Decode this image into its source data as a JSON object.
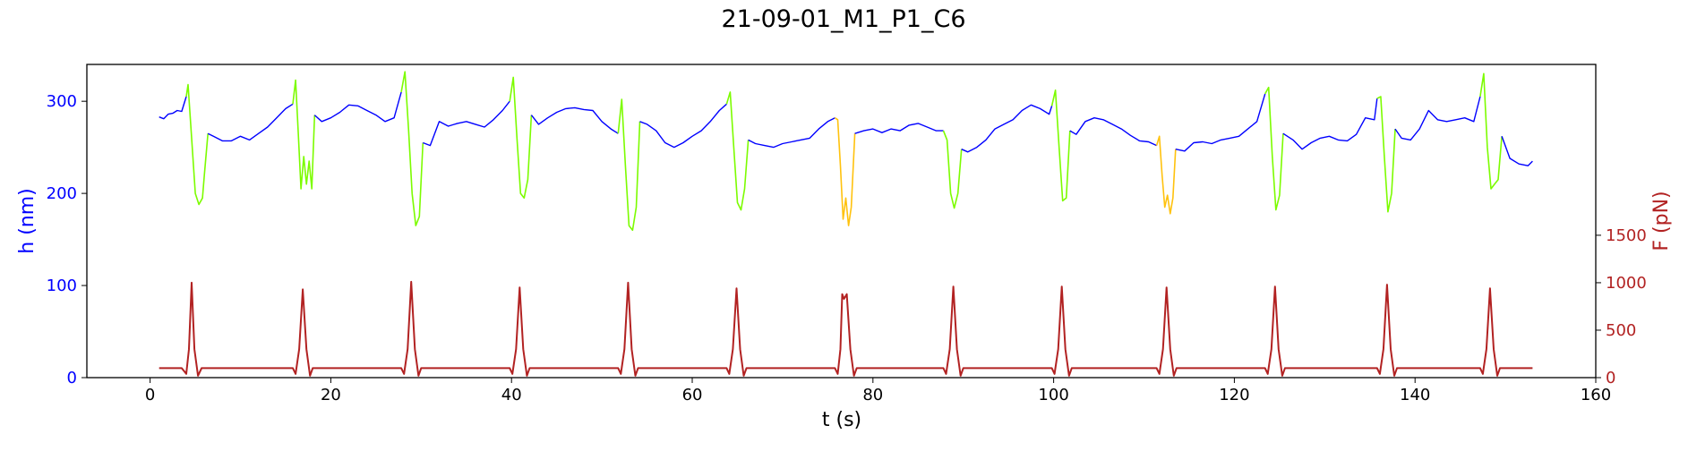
{
  "chart_data": {
    "type": "line",
    "title": "21-09-01_M1_P1_C6",
    "xlabel": "t (s)",
    "ylabel_left": "h (nm)",
    "ylabel_right": "F (pN)",
    "xlim": [
      -7,
      160
    ],
    "ylim_left": [
      0,
      340
    ],
    "ylim_right": [
      0,
      3300
    ],
    "xticks": [
      0,
      20,
      40,
      60,
      80,
      100,
      120,
      140,
      160
    ],
    "yticks_left": [
      0,
      100,
      200,
      300
    ],
    "yticks_right": [
      0,
      500,
      1000,
      1500
    ],
    "grid": false,
    "colors": {
      "height_baseline": "#0000ff",
      "height_compression": "#7cfc00",
      "height_compression_alt": "#ffc20e",
      "force": "#b22222",
      "left_axis": "#0000ff",
      "right_axis": "#b22222"
    },
    "series": [
      {
        "axis": "left",
        "role": "baseline",
        "x": [
          1,
          1.5,
          2,
          2.5,
          3,
          3.5,
          4
        ],
        "y": [
          283,
          281,
          286,
          287,
          290,
          289,
          305
        ]
      },
      {
        "axis": "left",
        "role": "compression",
        "x": [
          4,
          4.2,
          4.6,
          5,
          5.4,
          5.8,
          6,
          6.4
        ],
        "y": [
          305,
          318,
          260,
          200,
          188,
          195,
          220,
          265
        ]
      },
      {
        "axis": "left",
        "role": "baseline",
        "x": [
          6.4,
          7,
          8,
          9,
          10,
          11,
          12,
          13,
          14,
          15,
          15.8
        ],
        "y": [
          265,
          262,
          257,
          257,
          262,
          258,
          265,
          272,
          282,
          292,
          297
        ]
      },
      {
        "axis": "left",
        "role": "compression",
        "x": [
          15.8,
          16.1,
          16.4,
          16.7,
          17,
          17.3,
          17.6,
          17.9,
          18.2
        ],
        "y": [
          297,
          323,
          265,
          205,
          240,
          210,
          235,
          205,
          285
        ]
      },
      {
        "axis": "left",
        "role": "baseline",
        "x": [
          18.2,
          19,
          20,
          21,
          22,
          23,
          24,
          25,
          26,
          27,
          27.8
        ],
        "y": [
          285,
          278,
          282,
          288,
          296,
          295,
          290,
          285,
          278,
          282,
          310
        ]
      },
      {
        "axis": "left",
        "role": "compression",
        "x": [
          27.8,
          28.2,
          28.6,
          29,
          29.4,
          29.8,
          30.2
        ],
        "y": [
          310,
          332,
          270,
          200,
          165,
          175,
          255
        ]
      },
      {
        "axis": "left",
        "role": "baseline",
        "x": [
          30.2,
          31,
          32,
          33,
          34,
          35,
          36,
          37,
          38,
          39,
          39.8
        ],
        "y": [
          255,
          252,
          278,
          273,
          276,
          278,
          275,
          272,
          280,
          290,
          300
        ]
      },
      {
        "axis": "left",
        "role": "compression",
        "x": [
          39.8,
          40.2,
          40.6,
          41,
          41.4,
          41.8,
          42.2
        ],
        "y": [
          300,
          326,
          260,
          200,
          195,
          215,
          285
        ]
      },
      {
        "axis": "left",
        "role": "baseline",
        "x": [
          42.2,
          43,
          44,
          45,
          46,
          47,
          48,
          49,
          50,
          51,
          51.8
        ],
        "y": [
          285,
          275,
          282,
          288,
          292,
          293,
          291,
          290,
          278,
          270,
          265
        ]
      },
      {
        "axis": "left",
        "role": "compression",
        "x": [
          51.8,
          52.2,
          52.6,
          53,
          53.4,
          53.8,
          54.2
        ],
        "y": [
          265,
          302,
          230,
          165,
          160,
          185,
          278
        ]
      },
      {
        "axis": "left",
        "role": "baseline",
        "x": [
          54.2,
          55,
          56,
          57,
          58,
          59,
          60,
          61,
          62,
          63,
          63.8
        ],
        "y": [
          278,
          275,
          268,
          255,
          250,
          255,
          262,
          268,
          278,
          290,
          297
        ]
      },
      {
        "axis": "left",
        "role": "compression",
        "x": [
          63.8,
          64.2,
          64.6,
          65,
          65.4,
          65.8,
          66.2
        ],
        "y": [
          297,
          310,
          250,
          190,
          182,
          205,
          258
        ]
      },
      {
        "axis": "left",
        "role": "baseline",
        "x": [
          66.2,
          67,
          68,
          69,
          70,
          71,
          72,
          73,
          74,
          75,
          75.8
        ],
        "y": [
          258,
          254,
          252,
          250,
          254,
          256,
          258,
          260,
          270,
          278,
          282
        ]
      },
      {
        "axis": "left",
        "role": "compression_alt",
        "x": [
          75.8,
          76.1,
          76.4,
          76.7,
          77,
          77.3,
          77.6,
          78
        ],
        "y": [
          282,
          280,
          230,
          172,
          195,
          165,
          185,
          265
        ]
      },
      {
        "axis": "left",
        "role": "baseline",
        "x": [
          78,
          79,
          80,
          81,
          82,
          83,
          84,
          85,
          86,
          87,
          87.8
        ],
        "y": [
          265,
          268,
          270,
          266,
          270,
          268,
          274,
          276,
          272,
          268,
          268
        ]
      },
      {
        "axis": "left",
        "role": "compression",
        "x": [
          87.8,
          88.2,
          88.6,
          89,
          89.4,
          89.8
        ],
        "y": [
          268,
          258,
          200,
          184,
          200,
          248
        ]
      },
      {
        "axis": "left",
        "role": "baseline",
        "x": [
          89.8,
          90.5,
          91.5,
          92.5,
          93.5,
          94.5,
          95.5,
          96.5,
          97.5,
          98.5,
          99.5,
          99.8
        ],
        "y": [
          248,
          245,
          250,
          258,
          270,
          275,
          280,
          290,
          296,
          292,
          286,
          295
        ]
      },
      {
        "axis": "left",
        "role": "compression",
        "x": [
          99.8,
          100.2,
          100.6,
          101,
          101.4,
          101.8
        ],
        "y": [
          295,
          312,
          250,
          192,
          195,
          268
        ]
      },
      {
        "axis": "left",
        "role": "baseline",
        "x": [
          101.8,
          102.5,
          103.5,
          104.5,
          105.5,
          106.5,
          107.5,
          108.5,
          109.5,
          110.5,
          111.4
        ],
        "y": [
          268,
          264,
          278,
          282,
          280,
          275,
          270,
          263,
          257,
          256,
          252
        ]
      },
      {
        "axis": "left",
        "role": "compression_alt",
        "x": [
          111.4,
          111.7,
          112,
          112.3,
          112.6,
          112.9,
          113.2,
          113.5
        ],
        "y": [
          252,
          262,
          220,
          185,
          198,
          178,
          195,
          248
        ]
      },
      {
        "axis": "left",
        "role": "baseline",
        "x": [
          113.5,
          114.5,
          115.5,
          116.5,
          117.5,
          118.5,
          119.5,
          120.5,
          121.5,
          122.5,
          123.4
        ],
        "y": [
          248,
          246,
          255,
          256,
          254,
          258,
          260,
          262,
          270,
          278,
          308
        ]
      },
      {
        "axis": "left",
        "role": "compression",
        "x": [
          123.4,
          123.8,
          124.2,
          124.6,
          125,
          125.4
        ],
        "y": [
          308,
          315,
          240,
          182,
          198,
          265
        ]
      },
      {
        "axis": "left",
        "role": "baseline",
        "x": [
          125.4,
          126.5,
          127.5,
          128.5,
          129.5,
          130.5,
          131.5,
          132.5,
          133.5,
          134.5,
          135.5,
          135.8
        ],
        "y": [
          265,
          258,
          248,
          255,
          260,
          262,
          258,
          257,
          264,
          282,
          280,
          303
        ]
      },
      {
        "axis": "left",
        "role": "compression",
        "x": [
          135.8,
          136.2,
          136.6,
          137,
          137.4,
          137.8
        ],
        "y": [
          303,
          305,
          240,
          180,
          200,
          270
        ]
      },
      {
        "axis": "left",
        "role": "baseline",
        "x": [
          137.8,
          138.5,
          139.5,
          140.5,
          141.5,
          142.5,
          143.5,
          144.5,
          145.5,
          146.5,
          147.2
        ],
        "y": [
          270,
          260,
          258,
          270,
          290,
          280,
          278,
          280,
          282,
          278,
          305
        ]
      },
      {
        "axis": "left",
        "role": "compression",
        "x": [
          147.2,
          147.6,
          148,
          148.4,
          148.8,
          149.2,
          149.6
        ],
        "y": [
          305,
          330,
          250,
          205,
          210,
          215,
          262
        ]
      },
      {
        "axis": "left",
        "role": "baseline",
        "x": [
          149.6,
          150.5,
          151.5,
          152.5,
          153
        ],
        "y": [
          262,
          238,
          232,
          230,
          235
        ]
      },
      {
        "axis": "right",
        "role": "force",
        "x": [
          1,
          3.5,
          4,
          4.3,
          4.6,
          4.9,
          5.3,
          5.7,
          6,
          6.3,
          15.8,
          16.1,
          16.5,
          16.9,
          17.3,
          17.7,
          18,
          18.3,
          27.8,
          28.1,
          28.5,
          28.9,
          29.3,
          29.7,
          30,
          30.3,
          39.8,
          40.1,
          40.5,
          40.9,
          41.3,
          41.7,
          42,
          42.3,
          51.8,
          52.1,
          52.5,
          52.9,
          53.3,
          53.7,
          54,
          54.3,
          63.8,
          64.1,
          64.5,
          64.9,
          65.3,
          65.7,
          66,
          66.3,
          75.8,
          76.1,
          76.4,
          76.6,
          76.8,
          77.1,
          77.5,
          77.9,
          78.2,
          87.8,
          88.1,
          88.5,
          88.9,
          89.3,
          89.7,
          90,
          90.3,
          99.8,
          100.1,
          100.5,
          100.9,
          101.3,
          101.7,
          102,
          102.3,
          111.4,
          111.7,
          112.1,
          112.5,
          112.9,
          113.3,
          113.6,
          113.9,
          123.4,
          123.7,
          124.1,
          124.5,
          124.9,
          125.3,
          125.6,
          125.9,
          135.8,
          136.1,
          136.5,
          136.9,
          137.3,
          137.7,
          138,
          138.3,
          147.2,
          147.5,
          147.9,
          148.3,
          148.7,
          149.1,
          149.4,
          149.7,
          153
        ],
        "y": [
          100,
          100,
          40,
          300,
          1000,
          300,
          20,
          100,
          100,
          100,
          100,
          40,
          300,
          930,
          300,
          20,
          100,
          100,
          100,
          40,
          300,
          1010,
          300,
          20,
          100,
          100,
          100,
          40,
          300,
          950,
          300,
          20,
          100,
          100,
          100,
          40,
          300,
          1000,
          300,
          20,
          100,
          100,
          100,
          40,
          300,
          940,
          300,
          20,
          100,
          100,
          100,
          40,
          300,
          880,
          830,
          880,
          300,
          20,
          100,
          100,
          40,
          300,
          960,
          300,
          20,
          100,
          100,
          100,
          40,
          300,
          960,
          300,
          20,
          100,
          100,
          100,
          40,
          300,
          950,
          300,
          20,
          100,
          100,
          100,
          40,
          300,
          960,
          300,
          20,
          100,
          100,
          100,
          40,
          300,
          980,
          300,
          20,
          100,
          100,
          100,
          40,
          300,
          940,
          300,
          20,
          100,
          100,
          100
        ]
      }
    ]
  }
}
